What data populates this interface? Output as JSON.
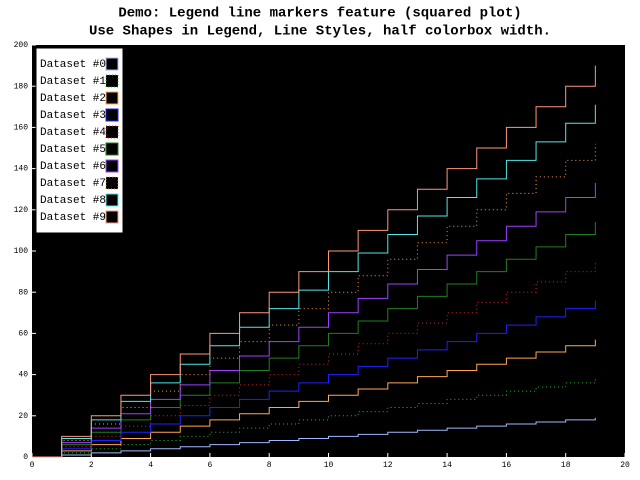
{
  "chart_data": {
    "type": "step",
    "title": "Demo: Legend line markers feature (squared plot)",
    "subtitle": "Use Shapes in Legend, Line Styles, half colorbox width.",
    "x": [
      0,
      1,
      2,
      3,
      4,
      5,
      6,
      7,
      8,
      9,
      10,
      11,
      12,
      13,
      14,
      15,
      16,
      17,
      18,
      19
    ],
    "xlim": [
      0,
      20
    ],
    "xticks": [
      0,
      2,
      4,
      6,
      8,
      10,
      12,
      14,
      16,
      18,
      20
    ],
    "ylim": [
      0,
      200
    ],
    "yticks": [
      0,
      20,
      40,
      60,
      80,
      100,
      120,
      140,
      160,
      180,
      200
    ],
    "legend": "top-left",
    "series": [
      {
        "name": "Dataset #0",
        "color": "#a0b8ff",
        "dash": false,
        "values": [
          0,
          1,
          2,
          3,
          4,
          5,
          6,
          7,
          8,
          9,
          10,
          11,
          12,
          13,
          14,
          15,
          16,
          17,
          18,
          19
        ]
      },
      {
        "name": "Dataset #1",
        "color": "#20c020",
        "dash": true,
        "values": [
          0,
          2,
          4,
          6,
          8,
          10,
          12,
          14,
          16,
          18,
          20,
          22,
          24,
          26,
          28,
          30,
          32,
          34,
          36,
          38
        ]
      },
      {
        "name": "Dataset #2",
        "color": "#ffa850",
        "dash": false,
        "values": [
          0,
          3,
          6,
          9,
          12,
          15,
          18,
          21,
          24,
          27,
          30,
          33,
          36,
          39,
          42,
          45,
          48,
          51,
          54,
          57
        ]
      },
      {
        "name": "Dataset #3",
        "color": "#2020ff",
        "dash": false,
        "values": [
          0,
          4,
          8,
          12,
          16,
          20,
          24,
          28,
          32,
          36,
          40,
          44,
          48,
          52,
          56,
          60,
          64,
          68,
          72,
          76
        ]
      },
      {
        "name": "Dataset #4",
        "color": "#e02020",
        "dash": true,
        "values": [
          0,
          5,
          10,
          15,
          20,
          25,
          30,
          35,
          40,
          45,
          50,
          55,
          60,
          65,
          70,
          75,
          80,
          85,
          90,
          95
        ]
      },
      {
        "name": "Dataset #5",
        "color": "#208020",
        "dash": false,
        "values": [
          0,
          6,
          12,
          18,
          24,
          30,
          36,
          42,
          48,
          54,
          60,
          66,
          72,
          78,
          84,
          90,
          96,
          102,
          108,
          114
        ]
      },
      {
        "name": "Dataset #6",
        "color": "#a040ff",
        "dash": false,
        "values": [
          0,
          7,
          14,
          21,
          28,
          35,
          42,
          49,
          56,
          63,
          70,
          77,
          84,
          91,
          98,
          105,
          112,
          119,
          126,
          133
        ]
      },
      {
        "name": "Dataset #7",
        "color": "#ffa040",
        "dash": true,
        "values": [
          0,
          8,
          16,
          24,
          32,
          40,
          48,
          56,
          64,
          72,
          80,
          88,
          96,
          104,
          112,
          120,
          128,
          136,
          144,
          152
        ]
      },
      {
        "name": "Dataset #8",
        "color": "#50e8e8",
        "dash": false,
        "values": [
          0,
          9,
          18,
          27,
          36,
          45,
          54,
          63,
          72,
          81,
          90,
          99,
          108,
          117,
          126,
          135,
          144,
          153,
          162,
          171
        ]
      },
      {
        "name": "Dataset #9",
        "color": "#ff9878",
        "dash": false,
        "values": [
          0,
          10,
          20,
          30,
          40,
          50,
          60,
          70,
          80,
          90,
          100,
          110,
          120,
          130,
          140,
          150,
          160,
          170,
          180,
          190
        ]
      }
    ]
  }
}
